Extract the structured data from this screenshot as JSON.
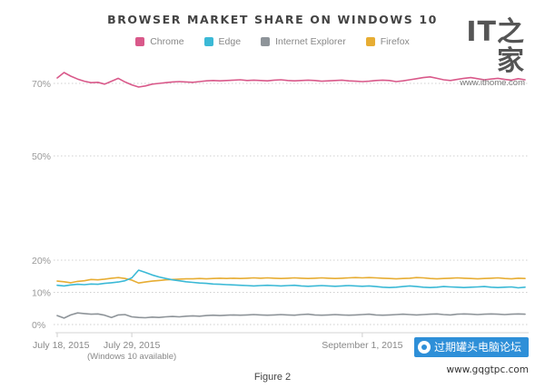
{
  "chart_data": {
    "type": "line",
    "title": "BROWSER MARKET SHARE ON WINDOWS 10",
    "caption": "Figure 2",
    "xlabel": "",
    "ylabel": "",
    "x_tick_labels": [
      {
        "label": "July 18, 2015",
        "sub": "",
        "index": 0
      },
      {
        "label": "July 29, 2015",
        "sub": "(Windows 10 available)",
        "index": 11
      },
      {
        "label": "September 1, 2015",
        "sub": "",
        "index": 45
      }
    ],
    "y_ticks": [
      {
        "label": "70%",
        "value": 70
      },
      {
        "label": "50%",
        "value": 50
      },
      {
        "label": "20%",
        "value": 20
      },
      {
        "label": "10%",
        "value": 10
      },
      {
        "label": "0%",
        "value": 0
      }
    ],
    "ylim": [
      0,
      75
    ],
    "x_count": 70,
    "series": [
      {
        "name": "Chrome",
        "color": "#d9598a",
        "values": [
          71.5,
          73.2,
          72.0,
          71.2,
          70.6,
          70.2,
          70.3,
          69.8,
          70.6,
          71.4,
          70.4,
          69.6,
          69.0,
          69.3,
          69.8,
          70.0,
          70.2,
          70.4,
          70.5,
          70.4,
          70.3,
          70.5,
          70.7,
          70.8,
          70.7,
          70.8,
          70.9,
          71.0,
          70.8,
          70.9,
          70.8,
          70.7,
          70.9,
          71.0,
          70.8,
          70.7,
          70.8,
          70.9,
          70.8,
          70.6,
          70.7,
          70.8,
          70.9,
          70.7,
          70.6,
          70.5,
          70.6,
          70.8,
          70.9,
          70.8,
          70.5,
          70.7,
          71.0,
          71.3,
          71.6,
          71.8,
          71.4,
          71.0,
          70.8,
          71.1,
          71.4,
          71.6,
          71.3,
          71.0,
          71.2,
          71.4,
          71.1,
          70.9,
          71.3,
          71.0
        ]
      },
      {
        "name": "Edge",
        "color": "#3bb9d6",
        "values": [
          12.2,
          12.0,
          12.3,
          12.5,
          12.4,
          12.6,
          12.5,
          12.8,
          13.0,
          13.2,
          13.6,
          14.5,
          16.9,
          16.2,
          15.4,
          14.8,
          14.3,
          13.9,
          13.6,
          13.3,
          13.1,
          12.9,
          12.8,
          12.6,
          12.5,
          12.4,
          12.3,
          12.2,
          12.1,
          12.0,
          12.1,
          12.2,
          12.1,
          12.0,
          12.1,
          12.2,
          12.0,
          11.9,
          12.0,
          12.1,
          12.0,
          11.9,
          12.0,
          12.1,
          12.0,
          11.9,
          12.0,
          11.8,
          11.6,
          11.5,
          11.6,
          11.8,
          12.0,
          11.8,
          11.6,
          11.5,
          11.6,
          11.8,
          11.7,
          11.6,
          11.5,
          11.6,
          11.7,
          11.8,
          11.6,
          11.5,
          11.6,
          11.7,
          11.4,
          11.6
        ]
      },
      {
        "name": "Internet Explorer",
        "color": "#8e9499",
        "values": [
          2.8,
          2.0,
          3.0,
          3.6,
          3.4,
          3.2,
          3.3,
          2.9,
          2.2,
          3.0,
          3.1,
          2.4,
          2.2,
          2.1,
          2.3,
          2.2,
          2.4,
          2.5,
          2.4,
          2.6,
          2.7,
          2.6,
          2.8,
          2.9,
          2.8,
          2.9,
          3.0,
          2.9,
          3.0,
          3.1,
          3.0,
          2.9,
          3.0,
          3.1,
          3.0,
          2.9,
          3.1,
          3.2,
          3.0,
          2.9,
          3.0,
          3.1,
          3.0,
          2.9,
          3.0,
          3.1,
          3.2,
          3.0,
          2.9,
          3.0,
          3.1,
          3.2,
          3.1,
          3.0,
          3.1,
          3.2,
          3.3,
          3.1,
          3.0,
          3.2,
          3.3,
          3.2,
          3.1,
          3.2,
          3.3,
          3.2,
          3.1,
          3.2,
          3.3,
          3.2
        ]
      },
      {
        "name": "Firefox",
        "color": "#e7ad33",
        "values": [
          13.5,
          13.3,
          13.0,
          13.4,
          13.6,
          14.0,
          13.9,
          14.1,
          14.4,
          14.6,
          14.3,
          13.8,
          12.9,
          13.2,
          13.5,
          13.7,
          13.9,
          14.0,
          14.1,
          14.2,
          14.2,
          14.3,
          14.2,
          14.3,
          14.4,
          14.3,
          14.4,
          14.3,
          14.4,
          14.5,
          14.4,
          14.5,
          14.4,
          14.3,
          14.4,
          14.5,
          14.4,
          14.3,
          14.4,
          14.5,
          14.4,
          14.3,
          14.4,
          14.5,
          14.6,
          14.5,
          14.6,
          14.5,
          14.4,
          14.3,
          14.2,
          14.3,
          14.4,
          14.6,
          14.5,
          14.3,
          14.2,
          14.3,
          14.4,
          14.5,
          14.4,
          14.3,
          14.2,
          14.3,
          14.4,
          14.5,
          14.3,
          14.2,
          14.4,
          14.3
        ]
      }
    ]
  },
  "logo": {
    "mark": "IT之家",
    "url": "www.ithome.com"
  },
  "watermark": {
    "label": "过期罐头电脑论坛",
    "url": "www.gqgtpc.com"
  }
}
